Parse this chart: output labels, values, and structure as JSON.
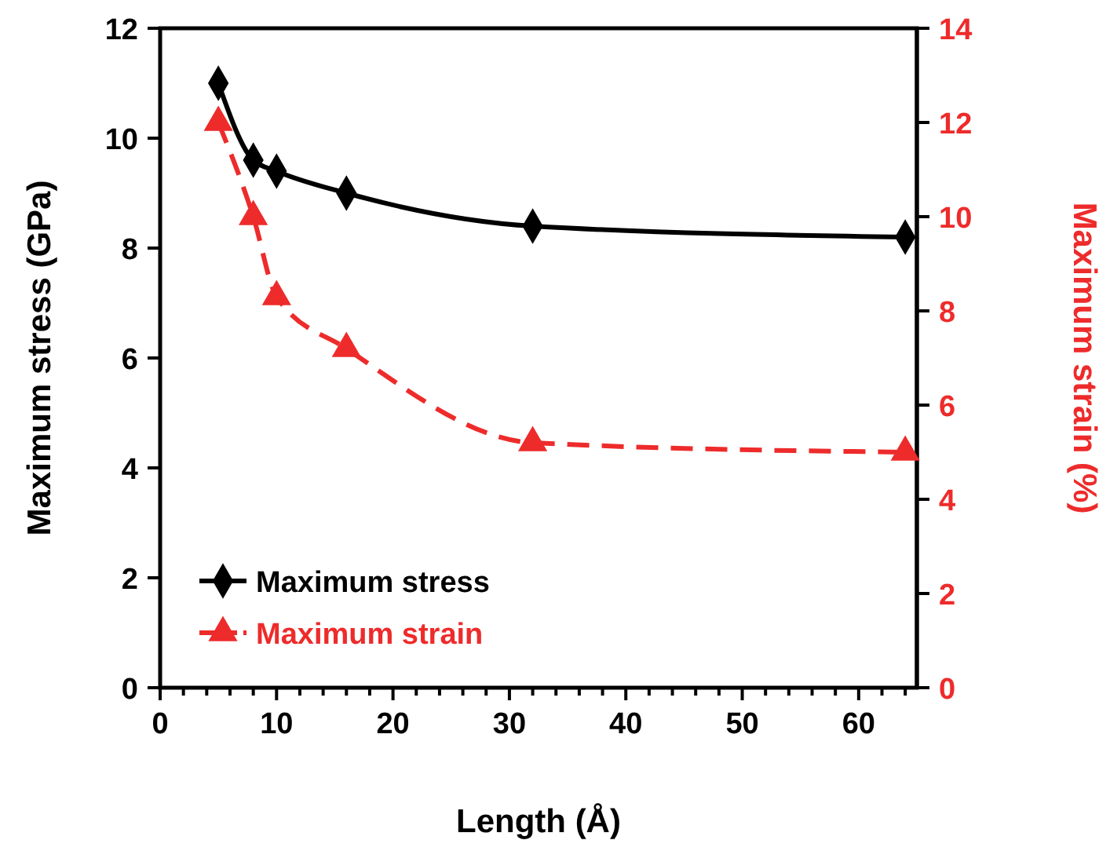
{
  "chart_data": {
    "type": "line",
    "xlabel": "Length (Å)",
    "ylabel": "Maximum stress (GPa)",
    "y2label": "Maximum strain (%)",
    "xlim": [
      0,
      65
    ],
    "xticks": [
      0,
      {
        "value": 2,
        "label": null
      },
      {
        "value": 4,
        "label": null
      },
      {
        "value": 6,
        "label": null
      },
      {
        "value": 8,
        "label": null
      },
      10,
      {
        "value": 12,
        "label": null
      },
      {
        "value": 14,
        "label": null
      },
      {
        "value": 16,
        "label": null
      },
      {
        "value": 18,
        "label": null
      },
      20,
      {
        "value": 22,
        "label": null
      },
      {
        "value": 24,
        "label": null
      },
      {
        "value": 26,
        "label": null
      },
      {
        "value": 28,
        "label": null
      },
      30,
      {
        "value": 32,
        "label": null
      },
      {
        "value": 34,
        "label": null
      },
      {
        "value": 36,
        "label": null
      },
      {
        "value": 38,
        "label": null
      },
      40,
      {
        "value": 42,
        "label": null
      },
      {
        "value": 44,
        "label": null
      },
      {
        "value": 46,
        "label": null
      },
      {
        "value": 48,
        "label": null
      },
      50,
      {
        "value": 52,
        "label": null
      },
      {
        "value": 54,
        "label": null
      },
      {
        "value": 56,
        "label": null
      },
      {
        "value": 58,
        "label": null
      },
      60,
      {
        "value": 62,
        "label": null
      },
      {
        "value": 64,
        "label": null
      }
    ],
    "ylim": [
      0,
      12
    ],
    "yticks": [
      0,
      2,
      4,
      6,
      8,
      10,
      12
    ],
    "y2lim": [
      0,
      14
    ],
    "y2ticks": [
      0,
      2,
      4,
      6,
      8,
      10,
      12,
      14
    ],
    "x": [
      5,
      8,
      10,
      16,
      32,
      64
    ],
    "series": [
      {
        "name": "Maximum stress",
        "color": "#000000",
        "values": [
          11.0,
          9.6,
          9.4,
          9.0,
          8.4,
          8.2
        ],
        "marker": "diamond",
        "line_style": "solid"
      },
      {
        "name": "Maximum strain",
        "color": "#ee2b2b",
        "values": [
          12,
          10,
          8.3,
          7.2,
          5.2,
          5.0
        ],
        "marker": "triangle",
        "line_style": "dashed",
        "axis": "y2"
      }
    ],
    "legend": "bottom left",
    "grid": false
  }
}
